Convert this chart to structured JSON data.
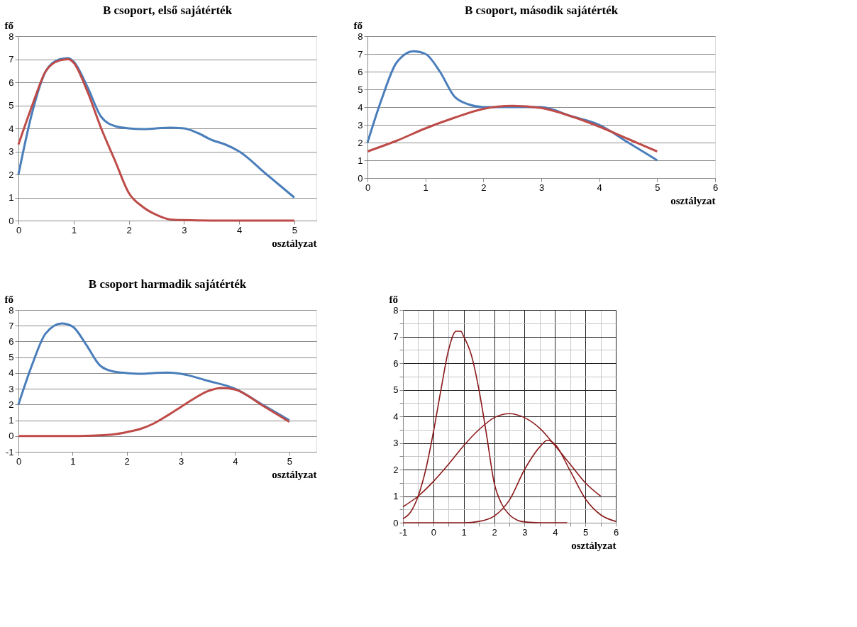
{
  "chart_data": [
    {
      "type": "line",
      "title": "B csoport, első sajátérték",
      "xlabel": "osztályzat",
      "ylabel": "fő",
      "xlim": [
        0,
        5.4
      ],
      "xticks": [
        0,
        1,
        2,
        3,
        4,
        5
      ],
      "ylim": [
        0,
        8
      ],
      "yticks": [
        0,
        1,
        2,
        3,
        4,
        5,
        6,
        7,
        8
      ],
      "grid": "y",
      "legend": false,
      "line_style": "solid",
      "marker": "none",
      "series": [
        {
          "color": "#4a7ebb",
          "x": [
            0,
            0.25,
            0.5,
            0.75,
            0.9,
            1,
            1.25,
            1.5,
            1.75,
            2,
            2.25,
            2.5,
            2.75,
            3,
            3.25,
            3.5,
            3.75,
            4,
            4.5,
            5
          ],
          "values": [
            2,
            4.7,
            6.5,
            7,
            7.05,
            6.9,
            5.8,
            4.5,
            4.1,
            4.0,
            3.97,
            4.0,
            4.03,
            4.0,
            3.8,
            3.5,
            3.3,
            3.0,
            2,
            1
          ]
        },
        {
          "color": "#be4b48",
          "x": [
            0,
            0.25,
            0.5,
            0.75,
            0.9,
            1,
            1.25,
            1.5,
            1.75,
            2,
            2.25,
            2.5,
            2.75,
            3,
            3.5,
            4,
            5
          ],
          "values": [
            3.3,
            5,
            6.5,
            6.95,
            7.0,
            6.85,
            5.6,
            4.0,
            2.6,
            1.2,
            0.6,
            0.25,
            0.05,
            0.02,
            0,
            0,
            0
          ]
        }
      ]
    },
    {
      "type": "line",
      "title": "B csoport, második sajátérték",
      "xlabel": "osztályzat",
      "ylabel": "fő",
      "xlim": [
        0,
        6
      ],
      "xticks": [
        0,
        1,
        2,
        3,
        4,
        5,
        6
      ],
      "ylim": [
        0,
        8
      ],
      "yticks": [
        0,
        1,
        2,
        3,
        4,
        5,
        6,
        7,
        8
      ],
      "grid": "y",
      "legend": false,
      "line_style": "solid",
      "marker": "none",
      "series": [
        {
          "color": "#4a7ebb",
          "x": [
            0,
            0.25,
            0.5,
            0.8,
            1,
            1.25,
            1.5,
            1.75,
            2,
            2.5,
            3,
            3.5,
            4,
            4.5,
            5
          ],
          "values": [
            2,
            4.5,
            6.5,
            7.15,
            7,
            6,
            4.6,
            4.15,
            4.0,
            4.0,
            4.0,
            3.5,
            3.0,
            2.0,
            1
          ]
        },
        {
          "color": "#be4b48",
          "x": [
            0,
            0.5,
            1,
            1.5,
            2,
            2.5,
            3,
            3.5,
            4,
            4.5,
            5
          ],
          "values": [
            1.5,
            2.1,
            2.8,
            3.4,
            3.9,
            4.07,
            3.95,
            3.5,
            2.9,
            2.2,
            1.5
          ]
        }
      ]
    },
    {
      "type": "line",
      "title": "B csoport harmadik sajátérték",
      "xlabel": "osztályzat",
      "ylabel": "fő",
      "xlim": [
        0,
        5.5
      ],
      "xticks": [
        0,
        1,
        2,
        3,
        4,
        5
      ],
      "ylim": [
        -1,
        8
      ],
      "yticks": [
        -1,
        0,
        1,
        2,
        3,
        4,
        5,
        6,
        7,
        8
      ],
      "grid": "y",
      "legend": false,
      "line_style": "solid",
      "marker": "none",
      "series": [
        {
          "color": "#4a7ebb",
          "x": [
            0,
            0.25,
            0.5,
            0.8,
            1,
            1.25,
            1.5,
            1.75,
            2,
            2.25,
            2.5,
            2.75,
            3,
            3.5,
            4,
            4.5,
            5
          ],
          "values": [
            2,
            4.5,
            6.5,
            7.15,
            6.95,
            5.8,
            4.5,
            4.1,
            4.0,
            3.95,
            4.0,
            4.03,
            3.95,
            3.5,
            3.0,
            2.0,
            1.0
          ]
        },
        {
          "color": "#be4b48",
          "x": [
            0,
            0.5,
            1,
            1.5,
            1.75,
            2,
            2.25,
            2.5,
            2.75,
            3,
            3.25,
            3.5,
            3.75,
            4,
            4.5,
            5
          ],
          "values": [
            0,
            0,
            0,
            0.05,
            0.1,
            0.25,
            0.45,
            0.8,
            1.3,
            1.85,
            2.4,
            2.85,
            3.05,
            2.95,
            1.95,
            0.9
          ]
        }
      ]
    },
    {
      "type": "line",
      "xlabel": "osztályzat",
      "ylabel": "fő",
      "xlim": [
        -1,
        6
      ],
      "xticks": [
        -1,
        {
          "value": -0.5,
          "label": null
        },
        0,
        {
          "value": 0.5,
          "label": null
        },
        1,
        {
          "value": 1.5,
          "label": null
        },
        2,
        {
          "value": 2.5,
          "label": null
        },
        3,
        {
          "value": 3.5,
          "label": null
        },
        4,
        {
          "value": 4.5,
          "label": null
        },
        5,
        {
          "value": 5.5,
          "label": null
        },
        6
      ],
      "ylim": [
        0,
        8
      ],
      "yticks": [
        0,
        {
          "value": 0.5,
          "label": null
        },
        1,
        {
          "value": 1.5,
          "label": null
        },
        2,
        {
          "value": 2.5,
          "label": null
        },
        3,
        {
          "value": 3.5,
          "label": null
        },
        4,
        {
          "value": 4.5,
          "label": null
        },
        5,
        {
          "value": 5.5,
          "label": null
        },
        6,
        {
          "value": 6.5,
          "label": null
        },
        7,
        {
          "value": 7.5,
          "label": null
        },
        8
      ],
      "grid": true,
      "legend": false,
      "line_style": "solid",
      "marker": "none",
      "series": [
        {
          "color": "#8b1a1a",
          "x": [
            -1,
            -0.75,
            -0.5,
            -0.25,
            0,
            0.25,
            0.5,
            0.75,
            0.9,
            1,
            1.25,
            1.5,
            1.75,
            2,
            2.25,
            2.5,
            2.75,
            3,
            3.5,
            4.4
          ],
          "values": [
            0.15,
            0.4,
            1.0,
            2.0,
            3.4,
            5.0,
            6.5,
            7.2,
            7.2,
            7.0,
            6.3,
            5.0,
            3.3,
            1.5,
            0.7,
            0.3,
            0.1,
            0.03,
            0,
            0
          ]
        },
        {
          "color": "#8b1a1a",
          "x": [
            -1,
            -0.5,
            0,
            0.5,
            1,
            1.5,
            2,
            2.5,
            3,
            3.5,
            4,
            4.5,
            5,
            5.5
          ],
          "values": [
            0.6,
            1.0,
            1.55,
            2.2,
            2.9,
            3.5,
            3.95,
            4.1,
            3.95,
            3.55,
            2.9,
            2.2,
            1.5,
            1.0
          ]
        },
        {
          "color": "#8b1a1a",
          "x": [
            -1,
            0,
            1,
            1.5,
            2,
            2.5,
            3,
            3.5,
            3.75,
            4,
            4.5,
            5,
            5.5,
            6
          ],
          "values": [
            0,
            0,
            0,
            0.05,
            0.25,
            0.85,
            2.0,
            2.85,
            3.1,
            2.95,
            1.95,
            0.9,
            0.3,
            0.05
          ]
        }
      ]
    }
  ]
}
